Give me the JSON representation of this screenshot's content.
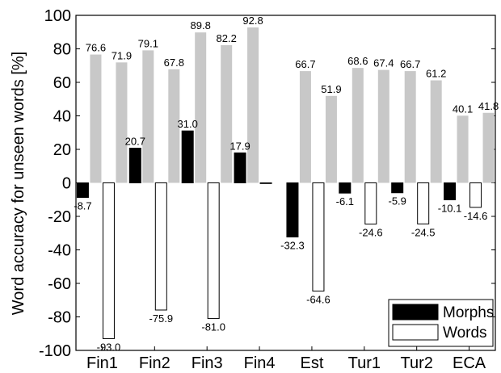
{
  "chart_data": {
    "type": "bar",
    "xlabel": "",
    "ylabel": "Word accuracy for unseen words [%]",
    "ylim": [
      -100,
      100
    ],
    "yticks": [
      -100,
      -80,
      -60,
      -40,
      -20,
      0,
      20,
      40,
      60,
      80,
      100
    ],
    "grid": false,
    "legend_position": "bottom-right",
    "categories": [
      "Fin1",
      "Fin2",
      "Fin3",
      "Fin4",
      "Est",
      "Tur1",
      "Tur2",
      "ECA"
    ],
    "series": [
      {
        "name": "Morphs",
        "color": "#000000",
        "values": [
          -8.7,
          20.7,
          31.0,
          17.9,
          -32.3,
          -6.1,
          -5.9,
          -10.1
        ],
        "labels": [
          "-8.7",
          "20.7",
          "31.0",
          "17.9",
          "-32.3",
          "-6.1",
          "-5.9",
          "-10.1"
        ]
      },
      {
        "name": "Words",
        "color": "#ffffff",
        "values": [
          -93.0,
          -75.9,
          -81.0,
          0,
          -64.6,
          -24.6,
          -24.5,
          -14.6
        ],
        "labels": [
          "-93.0",
          "-75.9",
          "-81.0",
          "",
          "-64.6",
          "-24.6",
          "-24.5",
          "-14.6"
        ]
      },
      {
        "name": "",
        "color": "#c8c8c8",
        "role": "baseline-morphs",
        "values": [
          76.6,
          79.1,
          89.8,
          92.8,
          66.7,
          68.6,
          66.7,
          40.1
        ],
        "labels": [
          "76.6",
          "79.1",
          "89.8",
          "92.8",
          "66.7",
          "68.6",
          "66.7",
          "40.1"
        ]
      },
      {
        "name": "",
        "color": "#c8c8c8",
        "role": "baseline-words",
        "values": [
          71.9,
          67.8,
          82.2,
          null,
          51.9,
          67.4,
          61.2,
          41.8
        ],
        "labels": [
          "71.9",
          "67.8",
          "82.2",
          "",
          "51.9",
          "67.4",
          "61.2",
          "41.8"
        ]
      }
    ],
    "legend": [
      {
        "label": "Morphs",
        "color": "#000000"
      },
      {
        "label": "Words",
        "color": "#ffffff"
      }
    ]
  }
}
